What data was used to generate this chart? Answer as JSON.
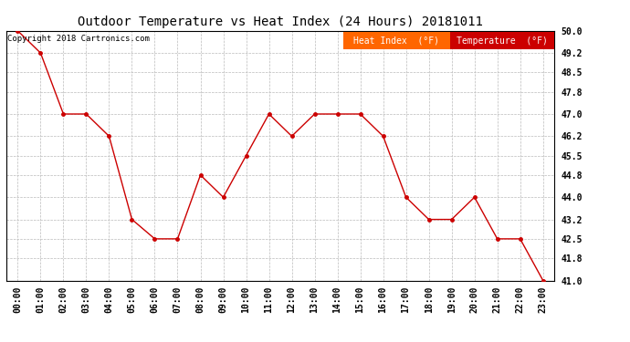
{
  "title": "Outdoor Temperature vs Heat Index (24 Hours) 20181011",
  "copyright": "Copyright 2018 Cartronics.com",
  "x_labels": [
    "00:00",
    "01:00",
    "02:00",
    "03:00",
    "04:00",
    "05:00",
    "06:00",
    "07:00",
    "08:00",
    "09:00",
    "10:00",
    "11:00",
    "12:00",
    "13:00",
    "14:00",
    "15:00",
    "16:00",
    "17:00",
    "18:00",
    "19:00",
    "20:00",
    "21:00",
    "22:00",
    "23:00"
  ],
  "temperature": [
    50.0,
    49.2,
    47.0,
    47.0,
    46.2,
    43.2,
    42.5,
    42.5,
    44.8,
    44.0,
    45.5,
    47.0,
    46.2,
    47.0,
    47.0,
    47.0,
    46.2,
    44.0,
    43.2,
    43.2,
    44.0,
    42.5,
    42.5,
    41.0
  ],
  "heat_index": [
    50.0,
    49.2,
    47.0,
    47.0,
    46.2,
    43.2,
    42.5,
    42.5,
    44.8,
    44.0,
    45.5,
    47.0,
    46.2,
    47.0,
    47.0,
    47.0,
    46.2,
    44.0,
    43.2,
    43.2,
    44.0,
    42.5,
    42.5,
    41.0
  ],
  "ylim": [
    41.0,
    50.0
  ],
  "yticks": [
    41.0,
    41.8,
    42.5,
    43.2,
    44.0,
    44.8,
    45.5,
    46.2,
    47.0,
    47.8,
    48.5,
    49.2,
    50.0
  ],
  "line_color": "#cc0000",
  "background_color": "#ffffff",
  "grid_color": "#bbbbbb",
  "title_fontsize": 10,
  "tick_fontsize": 7,
  "copyright_fontsize": 6.5,
  "legend_heat_index_bg": "#ff6600",
  "legend_temp_bg": "#cc0000",
  "legend_text_color": "#ffffff",
  "legend_fontsize": 7
}
